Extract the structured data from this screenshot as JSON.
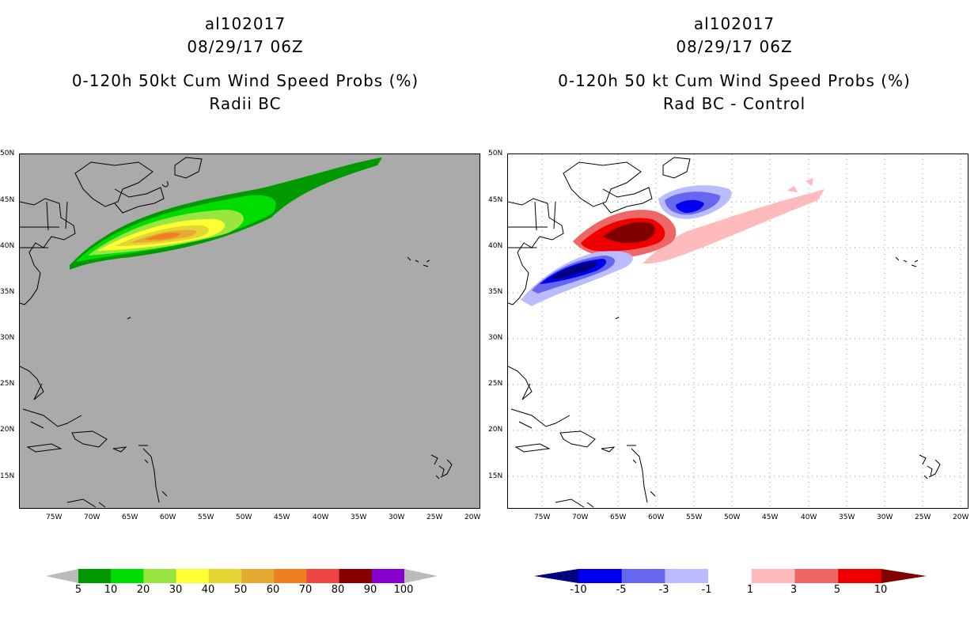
{
  "left_panel": {
    "storm_id": "al102017",
    "datetime": "08/29/17 06Z",
    "product": "0-120h 50kt Cum Wind Speed Probs (%)",
    "subtitle": "Radii BC",
    "background_color": "#aaaaaa",
    "colorbar": {
      "labels": [
        "5",
        "10",
        "20",
        "30",
        "40",
        "50",
        "60",
        "70",
        "80",
        "90",
        "100"
      ],
      "colors": [
        "#009900",
        "#00dd00",
        "#99e640",
        "#ffff33",
        "#e6d633",
        "#e6aa33",
        "#ee8022",
        "#ee4444",
        "#880000",
        "#8800cc"
      ],
      "end_color": "#bbbbbb"
    }
  },
  "right_panel": {
    "storm_id": "al102017",
    "datetime": "08/29/17 06Z",
    "product": "0-120h 50 kt Cum Wind Speed Probs (%)",
    "subtitle": "Rad BC - Control",
    "background_color": "#ffffff",
    "colorbar": {
      "labels": [
        "-10",
        "-5",
        "-3",
        "-1",
        "1",
        "3",
        "5",
        "10"
      ],
      "colors": [
        "#0000ee",
        "#6666ee",
        "#bbbbff",
        "#ffffff",
        "#ffbbbb",
        "#ee6666",
        "#ee0000"
      ],
      "end_low": "#000080",
      "end_high": "#800000"
    }
  },
  "axes": {
    "lat_labels": [
      "50N",
      "45N",
      "40N",
      "35N",
      "30N",
      "25N",
      "20N",
      "15N"
    ],
    "lon_labels": [
      "75W",
      "70W",
      "65W",
      "60W",
      "55W",
      "50W",
      "45W",
      "40W",
      "35W",
      "30W",
      "25W",
      "20W"
    ]
  }
}
